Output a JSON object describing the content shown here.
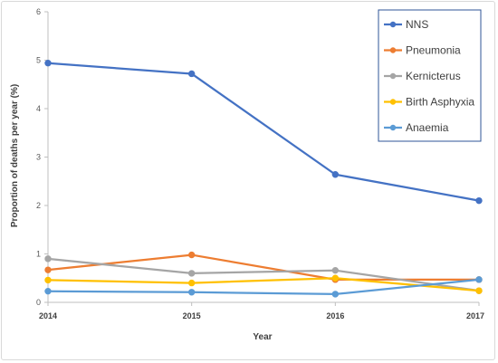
{
  "chart_data": {
    "type": "line",
    "title": "",
    "xlabel": "Year",
    "ylabel": "Proportion of deaths per year (%)",
    "categories": [
      "2014",
      "2015",
      "2016",
      "2017"
    ],
    "y_ticks": [
      "0",
      "1",
      "2",
      "3",
      "4",
      "5",
      "6"
    ],
    "ylim": [
      0,
      6
    ],
    "grid": false,
    "legend_position": "top-right",
    "series": [
      {
        "name": "NNS",
        "color": "#4472C4",
        "values": [
          4.94,
          4.72,
          2.64,
          2.1
        ]
      },
      {
        "name": "Pneumonia",
        "color": "#ED7D31",
        "values": [
          0.67,
          0.98,
          0.47,
          0.47
        ]
      },
      {
        "name": "Kernicterus",
        "color": "#A5A5A5",
        "values": [
          0.9,
          0.6,
          0.66,
          0.24
        ]
      },
      {
        "name": "Birth Asphyxia",
        "color": "#FFC000",
        "values": [
          0.46,
          0.4,
          0.5,
          0.24
        ]
      },
      {
        "name": "Anaemia",
        "color": "#5B9BD5",
        "values": [
          0.23,
          0.21,
          0.17,
          0.47
        ]
      }
    ]
  }
}
